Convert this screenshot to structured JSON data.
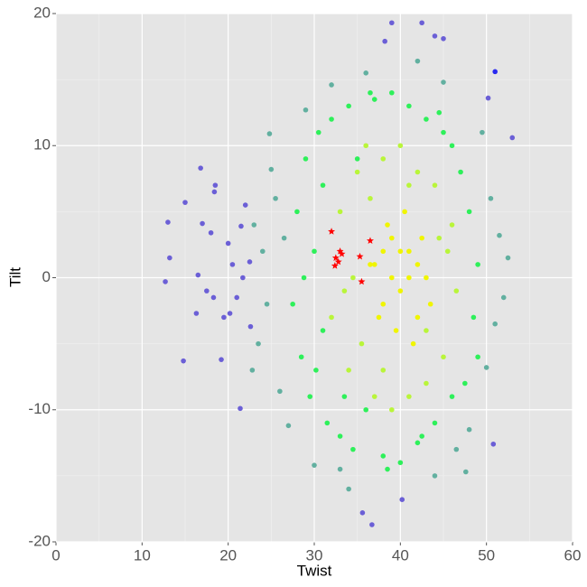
{
  "chart_data": {
    "type": "scatter",
    "x_label": "Twist",
    "y_label": "Tilt",
    "xlim": [
      0,
      60
    ],
    "ylim": [
      -20,
      20
    ],
    "xticks": [
      0,
      10,
      20,
      30,
      40,
      50,
      60
    ],
    "yticks": [
      -20,
      -10,
      0,
      10,
      20
    ],
    "grid": true,
    "series": [
      {
        "color": "#6b5fd6",
        "marker": "circle",
        "x": [
          13,
          13.2,
          12.7,
          15,
          14.8,
          16.8,
          17,
          16.5,
          17.5,
          18.5,
          18.4,
          18,
          18.3,
          16.3,
          19.2,
          19.5,
          20,
          20.5,
          21,
          21.5,
          21.4,
          22,
          22.5,
          22.6,
          21.7,
          20.2,
          39,
          42.5,
          44,
          45,
          38.2,
          36.7,
          35.6,
          40.2,
          50.8,
          53,
          50.2
        ],
        "values": [
          4.2,
          1.5,
          -0.3,
          5.7,
          -6.3,
          8.3,
          4.1,
          0.2,
          -1,
          7,
          6.5,
          3.4,
          -1.5,
          -2.7,
          -6.2,
          -3,
          2.6,
          1,
          -1.5,
          3.9,
          -9.9,
          5.5,
          1.2,
          -3.7,
          0,
          -2.7,
          19.3,
          19.3,
          18.3,
          18.1,
          17.9,
          -18.7,
          -17.8,
          -16.8,
          -12.6,
          10.6,
          13.6
        ]
      },
      {
        "color": "#2a2af0",
        "marker": "circle",
        "x": [
          51
        ],
        "values": [
          15.6
        ]
      },
      {
        "color": "#62b0a0",
        "marker": "circle",
        "x": [
          23,
          24,
          24.5,
          23.5,
          22.8,
          24.8,
          25,
          26,
          25.5,
          27,
          32,
          33,
          36,
          45,
          46.5,
          48,
          49.5,
          50,
          51.5,
          52,
          51,
          50.5,
          30,
          44,
          47.6,
          34,
          42,
          29,
          52.5,
          26.5
        ],
        "values": [
          4,
          2,
          -2,
          -5,
          -7,
          10.9,
          8.2,
          -8.6,
          6,
          -11.2,
          14.6,
          -14.5,
          15.5,
          14.8,
          -13,
          -11.5,
          11,
          -6.8,
          3.2,
          -1.5,
          -3.5,
          6,
          -14.2,
          -15,
          -14.7,
          -16,
          16.4,
          12.7,
          1.5,
          3
        ]
      },
      {
        "color": "#2ef05a",
        "marker": "circle",
        "x": [
          27.5,
          28,
          28.5,
          29,
          29.5,
          30,
          30.5,
          31,
          31,
          31.5,
          32,
          33,
          34,
          34.5,
          35,
          36,
          37,
          38,
          39,
          40,
          41,
          42,
          43,
          44,
          45,
          46,
          47,
          48,
          48.5,
          49,
          49,
          47.5,
          46,
          44.5,
          42.5,
          38.5,
          36.5,
          33.5,
          30.2,
          28.8
        ],
        "values": [
          -2,
          5,
          -6,
          9,
          -9,
          2,
          11,
          -4,
          7,
          -11,
          12,
          -12,
          13,
          -13,
          9,
          -10,
          13.5,
          -13.5,
          14,
          -14,
          13,
          -12.5,
          12,
          -11,
          11,
          -9,
          8,
          5,
          -3,
          1,
          -6,
          -8,
          10,
          12.5,
          -12,
          -14.5,
          14,
          -9,
          -7,
          0
        ]
      },
      {
        "color": "#b9f53a",
        "marker": "circle",
        "x": [
          32,
          33,
          34,
          35,
          35.5,
          36,
          37,
          38,
          39,
          40,
          41,
          42,
          43,
          44,
          45,
          46,
          44.5,
          43,
          41,
          38,
          36.5,
          34.5,
          33.5,
          46.5,
          45.5
        ],
        "values": [
          -3,
          5,
          -7,
          8,
          -5,
          10,
          -9,
          9,
          -10,
          10,
          -9,
          8,
          -8,
          7,
          -6,
          4,
          3,
          -4,
          7,
          -7,
          6,
          0,
          -1,
          -1,
          2
        ]
      },
      {
        "color": "#f0f500",
        "marker": "circle",
        "x": [
          37,
          38,
          39,
          40,
          41,
          42,
          43,
          38.5,
          39.5,
          40.5,
          41.5,
          42.5,
          37.5,
          39,
          41,
          43.5,
          36.5,
          40,
          42,
          38
        ],
        "values": [
          1,
          -2,
          3,
          -1,
          2,
          -3,
          0,
          4,
          -4,
          5,
          -5,
          3,
          -3,
          0,
          0,
          -2,
          1,
          2,
          1,
          2
        ]
      },
      {
        "color": "#ff0000",
        "marker": "star",
        "x": [
          32,
          32.5,
          33,
          32.8,
          33.2,
          32.4,
          35.3,
          35.5,
          36.5
        ],
        "values": [
          3.5,
          1.5,
          2,
          1.2,
          1.8,
          0.9,
          1.6,
          -0.3,
          2.8
        ]
      }
    ]
  }
}
